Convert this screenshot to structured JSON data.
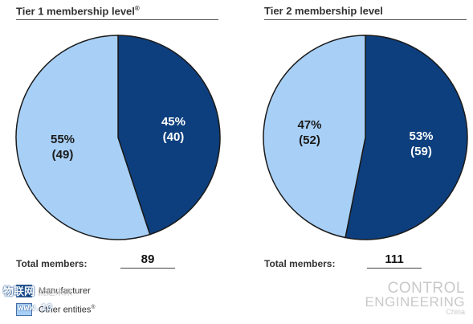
{
  "chart_data": [
    {
      "type": "pie",
      "title": "Tier 1 membership level",
      "title_sup": "®",
      "series_names": [
        "Manufacturer",
        "Other entities"
      ],
      "values": [
        40,
        49
      ],
      "percent_labels": [
        "45%",
        "55%"
      ],
      "count_labels": [
        "(40)",
        "(49)"
      ],
      "colors": [
        "#0d3f7e",
        "#a8d0f7"
      ],
      "total_label": "Total members:",
      "total_value": "89"
    },
    {
      "type": "pie",
      "title": "Tier 2 membership level",
      "series_names": [
        "Manufacturer",
        "Other entities"
      ],
      "values": [
        59,
        52
      ],
      "percent_labels": [
        "53%",
        "47%"
      ],
      "count_labels": [
        "(59)",
        "(52)"
      ],
      "colors": [
        "#0d3f7e",
        "#a8d0f7"
      ],
      "total_label": "Total members:",
      "total_value": "111"
    }
  ],
  "legend": [
    {
      "label": "Manufacturer",
      "color": "#0d3f7e"
    },
    {
      "label": "Other entities",
      "sup": "®",
      "color": "#a8d0f7"
    }
  ],
  "watermark": {
    "cn_text": "物联网",
    "cn_faded": "就是未来",
    "url": "www.10",
    "logo_line1": "CONTROL",
    "logo_line2": "ENGINEERING",
    "logo_line3": "China"
  }
}
